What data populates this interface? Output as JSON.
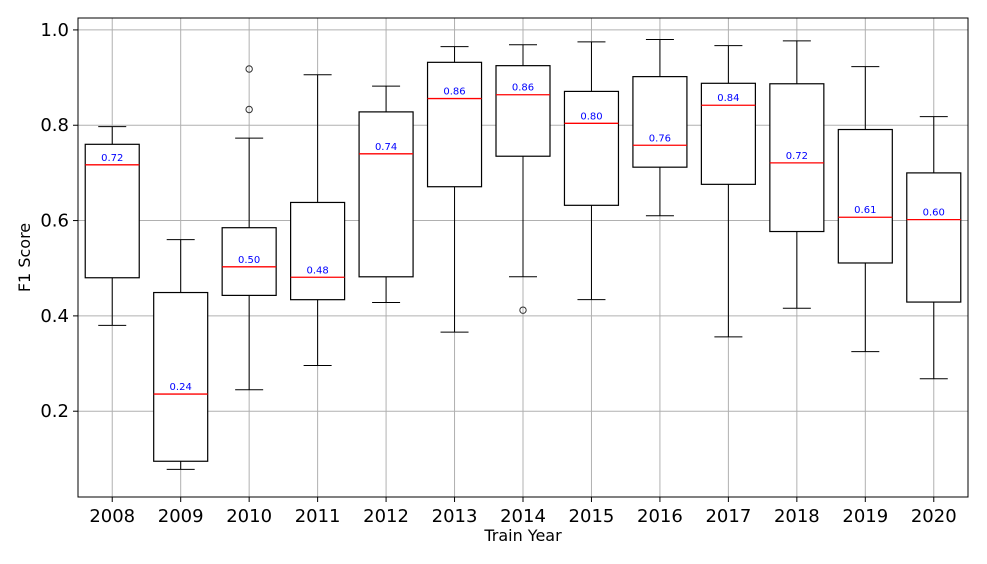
{
  "chart_data": {
    "type": "box",
    "title": "",
    "xlabel": "Train Year",
    "ylabel": "F1 Score",
    "ylim": [
      0.02,
      1.025
    ],
    "yticks": [
      0.2,
      0.4,
      0.6,
      0.8,
      1.0
    ],
    "ytick_labels": [
      "0.2",
      "0.4",
      "0.6",
      "0.8",
      "1.0"
    ],
    "grid": true,
    "colors": {
      "box": "#000000",
      "median": "#ff0000",
      "median_label": "#0000ff",
      "grid": "#b0b0b0"
    },
    "categories": [
      "2008",
      "2009",
      "2010",
      "2011",
      "2012",
      "2013",
      "2014",
      "2015",
      "2016",
      "2017",
      "2018",
      "2019",
      "2020"
    ],
    "boxes": [
      {
        "whisker_low": 0.38,
        "q1": 0.48,
        "median": 0.717,
        "q3": 0.76,
        "whisker_high": 0.797,
        "median_label": "0.72",
        "fliers": []
      },
      {
        "whisker_low": 0.078,
        "q1": 0.095,
        "median": 0.236,
        "q3": 0.449,
        "whisker_high": 0.56,
        "median_label": "0.24",
        "fliers": []
      },
      {
        "whisker_low": 0.245,
        "q1": 0.443,
        "median": 0.503,
        "q3": 0.585,
        "whisker_high": 0.773,
        "median_label": "0.50",
        "fliers": [
          0.833,
          0.918
        ]
      },
      {
        "whisker_low": 0.296,
        "q1": 0.434,
        "median": 0.481,
        "q3": 0.638,
        "whisker_high": 0.906,
        "median_label": "0.48",
        "fliers": []
      },
      {
        "whisker_low": 0.428,
        "q1": 0.482,
        "median": 0.74,
        "q3": 0.828,
        "whisker_high": 0.882,
        "median_label": "0.74",
        "fliers": []
      },
      {
        "whisker_low": 0.366,
        "q1": 0.671,
        "median": 0.856,
        "q3": 0.932,
        "whisker_high": 0.965,
        "median_label": "0.86",
        "fliers": []
      },
      {
        "whisker_low": 0.482,
        "q1": 0.735,
        "median": 0.864,
        "q3": 0.925,
        "whisker_high": 0.969,
        "median_label": "0.86",
        "fliers": [
          0.412
        ]
      },
      {
        "whisker_low": 0.434,
        "q1": 0.632,
        "median": 0.804,
        "q3": 0.871,
        "whisker_high": 0.975,
        "median_label": "0.80",
        "fliers": []
      },
      {
        "whisker_low": 0.61,
        "q1": 0.712,
        "median": 0.758,
        "q3": 0.902,
        "whisker_high": 0.98,
        "median_label": "0.76",
        "fliers": []
      },
      {
        "whisker_low": 0.356,
        "q1": 0.676,
        "median": 0.842,
        "q3": 0.888,
        "whisker_high": 0.967,
        "median_label": "0.84",
        "fliers": []
      },
      {
        "whisker_low": 0.416,
        "q1": 0.577,
        "median": 0.721,
        "q3": 0.887,
        "whisker_high": 0.977,
        "median_label": "0.72",
        "fliers": []
      },
      {
        "whisker_low": 0.325,
        "q1": 0.511,
        "median": 0.607,
        "q3": 0.791,
        "whisker_high": 0.923,
        "median_label": "0.61",
        "fliers": []
      },
      {
        "whisker_low": 0.268,
        "q1": 0.429,
        "median": 0.602,
        "q3": 0.7,
        "whisker_high": 0.818,
        "median_label": "0.60",
        "fliers": []
      }
    ]
  }
}
